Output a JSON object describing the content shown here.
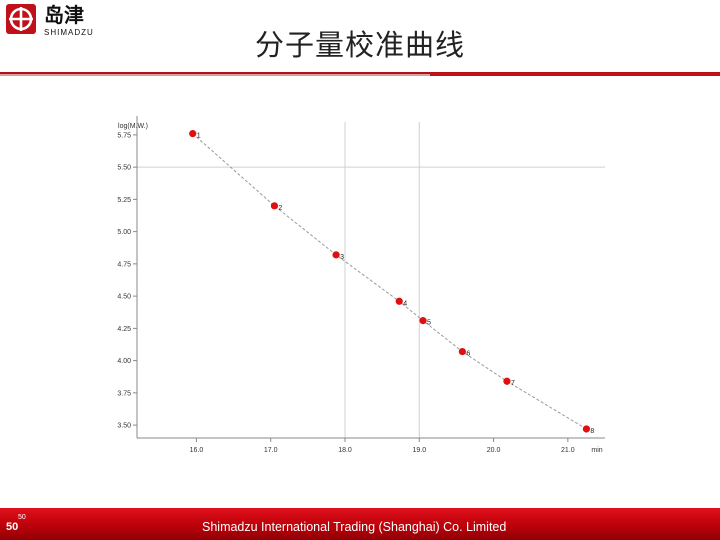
{
  "brand": {
    "name_cn": "岛津",
    "name_en": "SHIMADZU"
  },
  "slide": {
    "title": "分子量校准曲线",
    "page_number": "50"
  },
  "footer": {
    "text": "Shimadzu International Trading (Shanghai) Co. Limited"
  },
  "colors": {
    "accent": "#c0101a",
    "point": "#e01010",
    "footer": "#c00010"
  },
  "chart_data": {
    "type": "scatter",
    "title": "",
    "ylabel": "log(M.W.)",
    "xlabel": "min",
    "xlim": [
      15.2,
      21.5
    ],
    "ylim": [
      3.4,
      5.85
    ],
    "xticks": [
      "16.0",
      "17.0",
      "18.0",
      "19.0",
      "20.0",
      "21.0"
    ],
    "yticks": [
      "3.50",
      "3.75",
      "4.00",
      "4.25",
      "4.50",
      "4.75",
      "5.00",
      "5.25",
      "5.50",
      "5.75"
    ],
    "grid": "gray lines at x=18.0, x=19.0 and y=5.50",
    "fit_line": "dashed",
    "points": [
      {
        "label": "1",
        "x": 15.95,
        "y": 5.76
      },
      {
        "label": "2",
        "x": 17.05,
        "y": 5.2
      },
      {
        "label": "3",
        "x": 17.88,
        "y": 4.82
      },
      {
        "label": "4",
        "x": 18.73,
        "y": 4.46
      },
      {
        "label": "5",
        "x": 19.05,
        "y": 4.31
      },
      {
        "label": "6",
        "x": 19.58,
        "y": 4.07
      },
      {
        "label": "7",
        "x": 20.18,
        "y": 3.84
      },
      {
        "label": "8",
        "x": 21.25,
        "y": 3.47
      }
    ]
  }
}
